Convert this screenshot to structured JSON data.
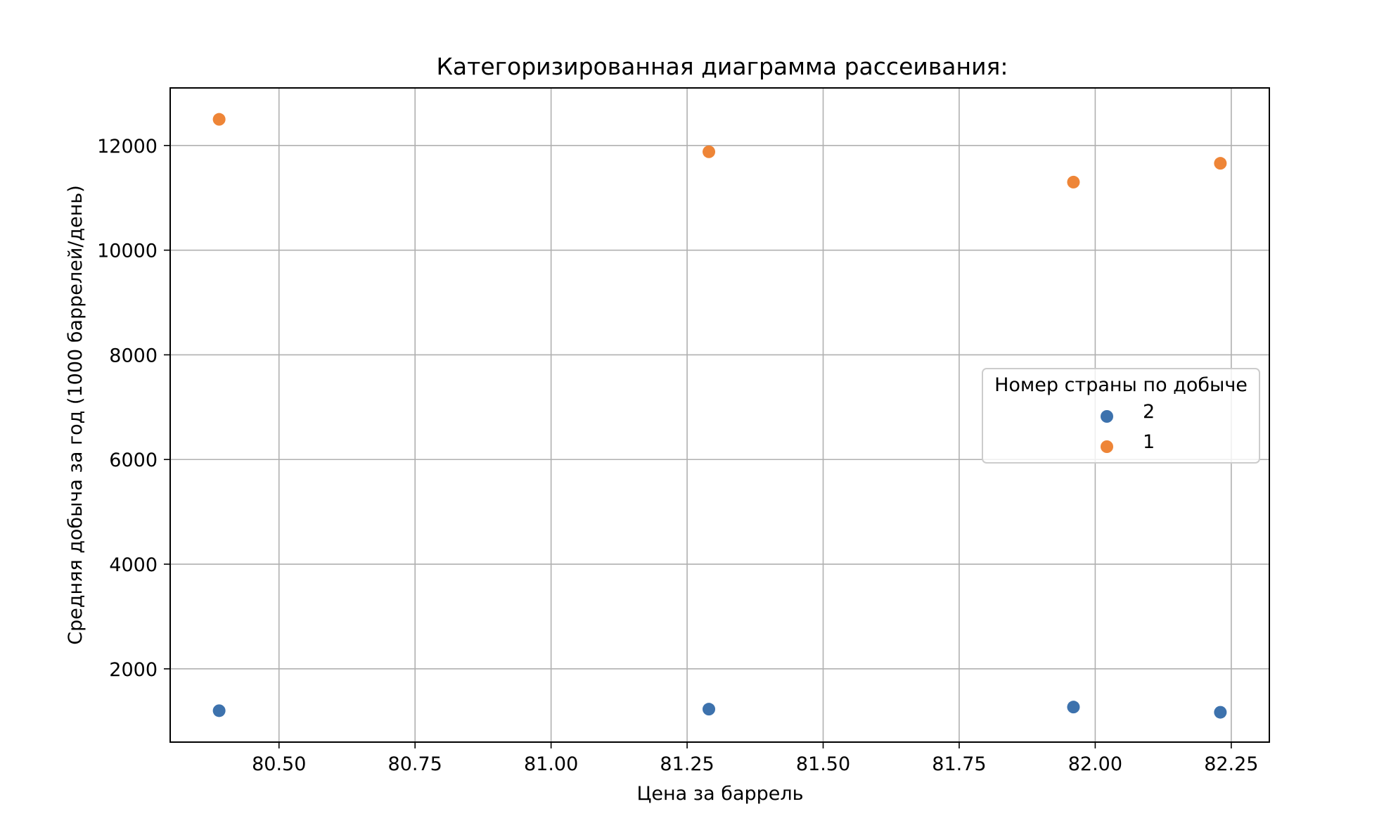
{
  "chart_data": {
    "type": "scatter",
    "title": "Категоризированная диаграмма рассеивания:",
    "xlabel": "Цена за баррель",
    "ylabel": "Средняя добыча за год (1000 баррелей/день)",
    "xlim": [
      80.3,
      82.32
    ],
    "ylim": [
      600,
      13100
    ],
    "xticks": [
      80.5,
      80.75,
      81.0,
      81.25,
      81.5,
      81.75,
      82.0,
      82.25
    ],
    "xtick_labels": [
      "80.50",
      "80.75",
      "81.00",
      "81.25",
      "81.50",
      "81.75",
      "82.00",
      "82.25"
    ],
    "yticks": [
      2000,
      4000,
      6000,
      8000,
      10000,
      12000
    ],
    "ytick_labels": [
      "2000",
      "4000",
      "6000",
      "8000",
      "10000",
      "12000"
    ],
    "grid": true,
    "legend": {
      "title": "Номер страны по добыче",
      "placement": "center-right"
    },
    "series": [
      {
        "name": "2",
        "color": "#3d72ad",
        "points": [
          {
            "x": 80.39,
            "y": 1200
          },
          {
            "x": 81.29,
            "y": 1230
          },
          {
            "x": 81.96,
            "y": 1270
          },
          {
            "x": 82.23,
            "y": 1170
          }
        ]
      },
      {
        "name": "1",
        "color": "#ee8537",
        "points": [
          {
            "x": 80.39,
            "y": 12500
          },
          {
            "x": 81.29,
            "y": 11880
          },
          {
            "x": 81.96,
            "y": 11300
          },
          {
            "x": 82.23,
            "y": 11660
          }
        ]
      }
    ]
  }
}
